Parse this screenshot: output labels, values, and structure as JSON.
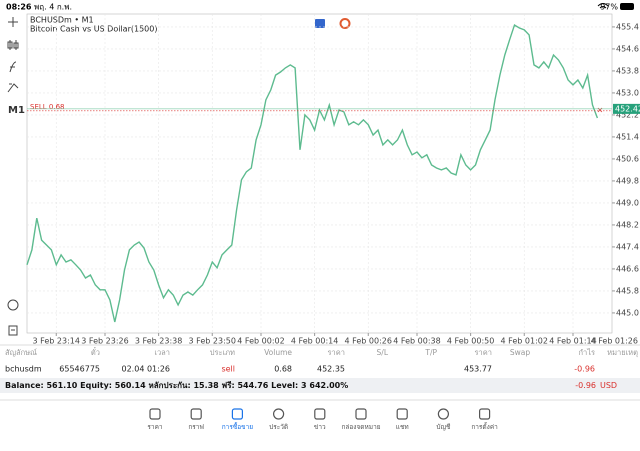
{
  "status_bar": {
    "time": "08:26",
    "date": "พฤ. 4 ก.พ.",
    "battery": "97%"
  },
  "toolbar": {
    "timeframe": "M1"
  },
  "chart_data": {
    "type": "line",
    "title": "BCHUSDm • M1",
    "subtitle": "Bitcoin Cash vs US Dollar(1500)",
    "color": "#5dbb8f",
    "values": [
      446.75,
      447.29,
      448.45,
      447.65,
      447.47,
      447.29,
      446.75,
      447.11,
      446.85,
      446.93,
      446.75,
      446.56,
      446.27,
      446.38,
      446.02,
      445.84,
      445.84,
      445.47,
      444.67,
      445.47,
      446.56,
      447.29,
      447.47,
      447.58,
      447.36,
      446.85,
      446.56,
      446.02,
      445.55,
      445.84,
      445.65,
      445.29,
      445.65,
      445.76,
      445.65,
      445.84,
      446.02,
      446.38,
      446.85,
      446.64,
      447.11,
      447.29,
      447.47,
      448.75,
      449.84,
      450.13,
      450.27,
      451.29,
      451.84,
      452.75,
      453.11,
      453.65,
      453.76,
      453.91,
      454.02,
      453.91,
      450.93,
      452.2,
      452.02,
      451.65,
      452.38,
      452.02,
      452.56,
      451.84,
      452.38,
      452.31,
      451.84,
      451.95,
      451.84,
      452.02,
      451.84,
      451.47,
      451.65,
      451.11,
      451.29,
      451.11,
      451.29,
      451.65,
      451.11,
      450.75,
      450.85,
      450.64,
      450.75,
      450.38,
      450.27,
      450.2,
      450.27,
      450.09,
      450.02,
      450.75,
      450.38,
      450.2,
      450.38,
      450.93,
      451.29,
      451.65,
      452.75,
      453.65,
      454.38,
      454.93,
      455.47,
      455.36,
      455.29,
      455.11,
      454.02,
      453.91,
      454.13,
      453.91,
      454.38,
      454.2,
      453.91,
      453.47,
      453.29,
      453.47,
      453.18,
      453.65,
      452.56,
      452.09
    ],
    "xlim": [
      0,
      120
    ],
    "xticks": [
      {
        "value": 6,
        "label": "3 Feb 23:14"
      },
      {
        "value": 16,
        "label": "3 Feb 23:26"
      },
      {
        "value": 27,
        "label": "3 Feb 23:38"
      },
      {
        "value": 38,
        "label": "3 Feb 23:50"
      },
      {
        "value": 48,
        "label": "4 Feb 00:02"
      },
      {
        "value": 59,
        "label": "4 Feb 00:14"
      },
      {
        "value": 70,
        "label": "4 Feb 00:26"
      },
      {
        "value": 80,
        "label": "4 Feb 00:38"
      },
      {
        "value": 91,
        "label": "4 Feb 00:50"
      },
      {
        "value": 102,
        "label": "4 Feb 01:02"
      },
      {
        "value": 112,
        "label": "4 Feb 01:14"
      },
      {
        "value": 123,
        "label": "4 Feb 01:26"
      }
    ],
    "ylim": [
      444.27,
      455.87
    ],
    "yticks": [
      455.4,
      454.6,
      453.8,
      {
        "value": 453,
        "label": "453.0"
      },
      452.2,
      451.4,
      450.6,
      449.8,
      {
        "value": 449,
        "label": "449.0"
      },
      448.2,
      447.4,
      446.6,
      445.8,
      {
        "value": 445,
        "label": "445.0"
      }
    ],
    "grid": true,
    "current_price": 452.42,
    "order_line": {
      "label": "SELL 0.68",
      "value": 452.35
    }
  },
  "positions": {
    "columns": [
      "สัญลักษณ์",
      "ตั๋ว",
      "เวลา",
      "ประเภท",
      "Volume",
      "ราคา",
      "S/L",
      "T/P",
      "ราคา",
      "Swap",
      "กำไร",
      "หมายเหตุ"
    ],
    "row": {
      "symbol": "bchusdm",
      "ticket": "65546775",
      "time": "02.04 01:26",
      "type": "sell",
      "volume": "0.68",
      "open_price": "452.35",
      "price": "453.77",
      "profit": "-0.96"
    }
  },
  "summary": {
    "text": "Balance: 561.10 Equity: 560.14 หลักประกัน: 15.38 ฟรี: 544.76 Level: 3 642.00%",
    "profit": "-0.96",
    "currency": "USD"
  },
  "tabs": [
    "ราคา",
    "กราฟ",
    "การซื้อขาย",
    "ประวัติ",
    "ข่าว",
    "กล่องจดหมาย",
    "แชท",
    "บัญชี",
    "การตั้งค่า"
  ],
  "active_tab": 2
}
